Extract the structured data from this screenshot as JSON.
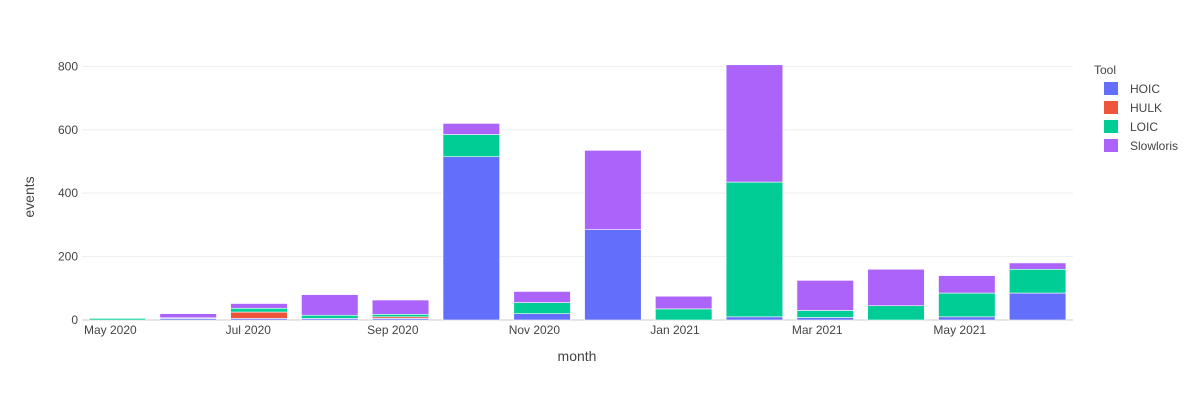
{
  "chart_data": {
    "type": "bar",
    "barmode": "stack",
    "xlabel": "month",
    "ylabel": "events",
    "ylim": [
      0,
      820
    ],
    "yticks": [
      0,
      200,
      400,
      600,
      800
    ],
    "grid": true,
    "legend": {
      "title": "Tool",
      "position": "right"
    },
    "categories": [
      "2020-05",
      "2020-06",
      "2020-07",
      "2020-08",
      "2020-09",
      "2020-10",
      "2020-11",
      "2020-12",
      "2021-01",
      "2021-02",
      "2021-03",
      "2021-04",
      "2021-05",
      "2021-06"
    ],
    "x_tick_labels": [
      {
        "category": "2020-05",
        "label": "May 2020"
      },
      {
        "category": "2020-07",
        "label": "Jul 2020"
      },
      {
        "category": "2020-09",
        "label": "Sep 2020"
      },
      {
        "category": "2020-11",
        "label": "Nov 2020"
      },
      {
        "category": "2021-01",
        "label": "Jan 2021"
      },
      {
        "category": "2021-03",
        "label": "Mar 2021"
      },
      {
        "category": "2021-05",
        "label": "May 2021"
      }
    ],
    "series": [
      {
        "name": "HOIC",
        "color": "#636efa",
        "values": [
          0,
          5,
          5,
          5,
          5,
          515,
          20,
          285,
          0,
          10,
          8,
          0,
          10,
          85
        ]
      },
      {
        "name": "HULK",
        "color": "#ef553b",
        "values": [
          0,
          0,
          20,
          0,
          5,
          0,
          0,
          0,
          0,
          0,
          0,
          0,
          0,
          0
        ]
      },
      {
        "name": "LOIC",
        "color": "#00cc96",
        "values": [
          5,
          2,
          12,
          10,
          8,
          70,
          35,
          0,
          35,
          425,
          22,
          45,
          75,
          75
        ]
      },
      {
        "name": "Slowloris",
        "color": "#ab63fa",
        "values": [
          0,
          13,
          15,
          65,
          45,
          35,
          35,
          250,
          40,
          370,
          95,
          115,
          55,
          20
        ]
      }
    ]
  }
}
